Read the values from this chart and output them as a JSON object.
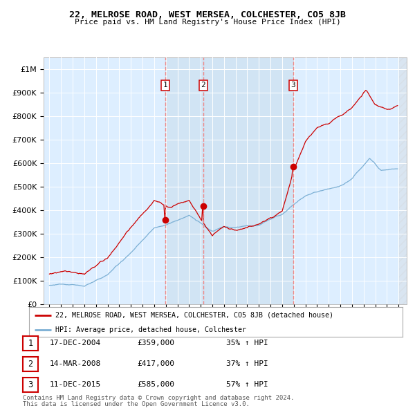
{
  "title": "22, MELROSE ROAD, WEST MERSEA, COLCHESTER, CO5 8JB",
  "subtitle": "Price paid vs. HM Land Registry's House Price Index (HPI)",
  "sale_prices": [
    359000,
    417000,
    585000
  ],
  "sale_labels": [
    "1",
    "2",
    "3"
  ],
  "sale_decimal": [
    2004.958,
    2008.208,
    2015.958
  ],
  "sale_info": [
    [
      "1",
      "17-DEC-2004",
      "£359,000",
      "35% ↑ HPI"
    ],
    [
      "2",
      "14-MAR-2008",
      "£417,000",
      "37% ↑ HPI"
    ],
    [
      "3",
      "11-DEC-2015",
      "£585,000",
      "57% ↑ HPI"
    ]
  ],
  "legend_line1": "22, MELROSE ROAD, WEST MERSEA, COLCHESTER, CO5 8JB (detached house)",
  "legend_line2": "HPI: Average price, detached house, Colchester",
  "footer1": "Contains HM Land Registry data © Crown copyright and database right 2024.",
  "footer2": "This data is licensed under the Open Government Licence v3.0.",
  "red_color": "#cc0000",
  "blue_color": "#7bafd4",
  "vline_color": "#ee8888",
  "background_color": "#ddeeff",
  "shade_color": "#cce0f0",
  "ylim": [
    0,
    1050000
  ],
  "xlim_start": 1994.5,
  "xlim_end": 2025.7
}
